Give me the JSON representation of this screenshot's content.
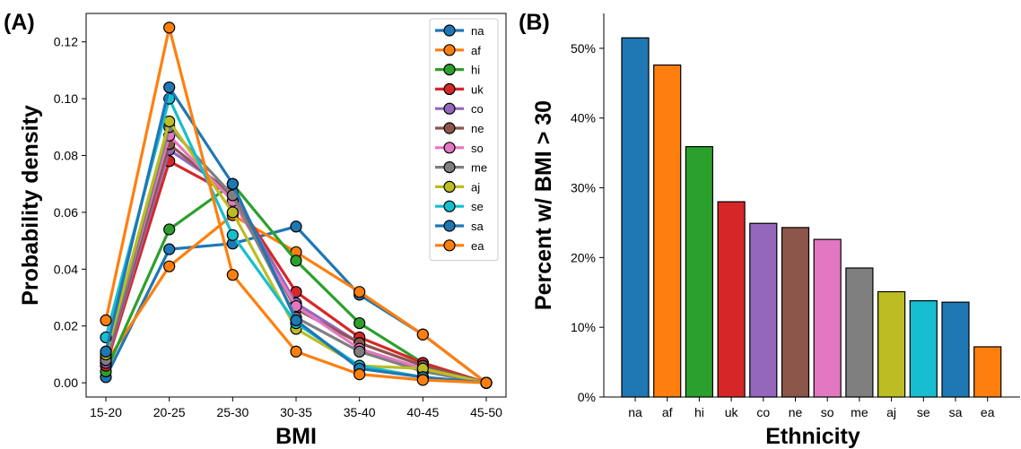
{
  "chart_data": [
    {
      "panel": "(A)",
      "type": "line",
      "title": "",
      "xlabel": "BMI",
      "ylabel": "Probability density",
      "categories": [
        "15-20",
        "20-25",
        "25-30",
        "30-35",
        "35-40",
        "40-45",
        "45-50"
      ],
      "ylim": [
        -0.005,
        0.13
      ],
      "yticks": [
        0.0,
        0.02,
        0.04,
        0.06,
        0.08,
        0.1,
        0.12
      ],
      "ytick_labels": [
        "0.00",
        "0.02",
        "0.04",
        "0.06",
        "0.08",
        "0.10",
        "0.12"
      ],
      "grid": false,
      "legend_position": "top-right",
      "series": [
        {
          "name": "na",
          "color": "#1f77b4",
          "values": [
            0.002,
            0.047,
            0.049,
            0.055,
            0.031,
            0.017,
            0.0
          ]
        },
        {
          "name": "af",
          "color": "#ff7f0e",
          "values": [
            0.007,
            0.041,
            0.059,
            0.046,
            0.032,
            0.017,
            0.0
          ]
        },
        {
          "name": "hi",
          "color": "#2ca02c",
          "values": [
            0.004,
            0.054,
            0.07,
            0.043,
            0.021,
            0.007,
            0.0
          ]
        },
        {
          "name": "uk",
          "color": "#d62728",
          "values": [
            0.006,
            0.078,
            0.066,
            0.032,
            0.016,
            0.007,
            0.0
          ]
        },
        {
          "name": "co",
          "color": "#9467bd",
          "values": [
            0.007,
            0.082,
            0.067,
            0.028,
            0.014,
            0.006,
            0.0
          ]
        },
        {
          "name": "ne",
          "color": "#8c564b",
          "values": [
            0.008,
            0.084,
            0.066,
            0.026,
            0.014,
            0.006,
            0.0
          ]
        },
        {
          "name": "so",
          "color": "#e377c2",
          "values": [
            0.009,
            0.087,
            0.064,
            0.027,
            0.012,
            0.005,
            0.0
          ]
        },
        {
          "name": "me",
          "color": "#7f7f7f",
          "values": [
            0.008,
            0.09,
            0.066,
            0.023,
            0.011,
            0.004,
            0.0
          ]
        },
        {
          "name": "aj",
          "color": "#bcbd22",
          "values": [
            0.01,
            0.092,
            0.06,
            0.019,
            0.006,
            0.005,
            0.0
          ]
        },
        {
          "name": "se",
          "color": "#17becf",
          "values": [
            0.016,
            0.1,
            0.052,
            0.021,
            0.006,
            0.002,
            0.0
          ]
        },
        {
          "name": "sa",
          "color": "#1f77b4",
          "values": [
            0.011,
            0.104,
            0.07,
            0.022,
            0.005,
            0.002,
            0.0
          ]
        },
        {
          "name": "ea",
          "color": "#ff7f0e",
          "values": [
            0.022,
            0.125,
            0.038,
            0.011,
            0.003,
            0.001,
            0.0
          ]
        }
      ]
    },
    {
      "panel": "(B)",
      "type": "bar",
      "title": "",
      "xlabel": "Ethnicity",
      "ylabel": "Percent w/ BMI > 30",
      "categories": [
        "na",
        "af",
        "hi",
        "uk",
        "co",
        "ne",
        "so",
        "me",
        "aj",
        "se",
        "sa",
        "ea"
      ],
      "values": [
        51.5,
        47.6,
        35.9,
        28.0,
        24.9,
        24.3,
        22.6,
        18.5,
        15.1,
        13.8,
        13.6,
        7.2
      ],
      "colors": [
        "#1f77b4",
        "#ff7f0e",
        "#2ca02c",
        "#d62728",
        "#9467bd",
        "#8c564b",
        "#e377c2",
        "#7f7f7f",
        "#bcbd22",
        "#17becf",
        "#1f77b4",
        "#ff7f0e"
      ],
      "ylim": [
        0,
        55
      ],
      "yticks": [
        0,
        10,
        20,
        30,
        40,
        50
      ],
      "ytick_labels": [
        "0%",
        "10%",
        "20%",
        "30%",
        "40%",
        "50%"
      ],
      "grid": false,
      "legend_position": "none"
    }
  ]
}
